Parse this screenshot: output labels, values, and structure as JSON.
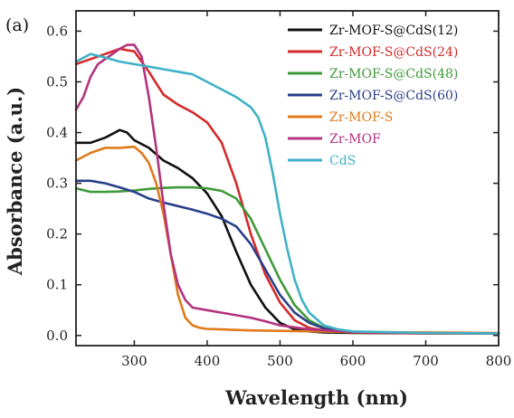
{
  "panel_label": "(a)",
  "chart_data": {
    "type": "line",
    "xlabel": "Wavelength (nm)",
    "ylabel": "Absorbance (a.u.)",
    "xlim": [
      220,
      800
    ],
    "ylim": [
      -0.02,
      0.64
    ],
    "xticks": [
      300,
      400,
      500,
      600,
      700,
      800
    ],
    "yticks": [
      0.0,
      0.1,
      0.2,
      0.3,
      0.4,
      0.5,
      0.6
    ],
    "ytick_labels": [
      "0.0",
      "0.1",
      "0.2",
      "0.3",
      "0.4",
      "0.5",
      "0.6"
    ],
    "grid": false,
    "legend_position": "top-right",
    "series": [
      {
        "name": "Zr-MOF-S@CdS(12)",
        "color": "#111111",
        "x": [
          220,
          240,
          260,
          280,
          290,
          300,
          320,
          340,
          360,
          380,
          400,
          420,
          440,
          460,
          480,
          500,
          520,
          540,
          560,
          600,
          700,
          800
        ],
        "y": [
          0.38,
          0.38,
          0.39,
          0.405,
          0.4,
          0.385,
          0.37,
          0.345,
          0.33,
          0.31,
          0.28,
          0.235,
          0.165,
          0.1,
          0.055,
          0.025,
          0.012,
          0.008,
          0.006,
          0.005,
          0.004,
          0.004
        ]
      },
      {
        "name": "Zr-MOF-S@CdS(24)",
        "color": "#d42a2a",
        "x": [
          220,
          240,
          260,
          280,
          300,
          320,
          340,
          360,
          380,
          400,
          420,
          440,
          460,
          480,
          500,
          520,
          540,
          560,
          600,
          700,
          800
        ],
        "y": [
          0.535,
          0.545,
          0.555,
          0.565,
          0.56,
          0.52,
          0.475,
          0.455,
          0.44,
          0.42,
          0.38,
          0.3,
          0.2,
          0.12,
          0.065,
          0.03,
          0.015,
          0.01,
          0.006,
          0.004,
          0.004
        ]
      },
      {
        "name": "Zr-MOF-S@CdS(48)",
        "color": "#3f9a3a",
        "x": [
          220,
          240,
          260,
          280,
          300,
          320,
          340,
          360,
          380,
          400,
          420,
          440,
          460,
          480,
          500,
          520,
          540,
          560,
          580,
          600,
          700,
          800
        ],
        "y": [
          0.29,
          0.283,
          0.283,
          0.284,
          0.286,
          0.289,
          0.291,
          0.292,
          0.292,
          0.29,
          0.285,
          0.27,
          0.23,
          0.17,
          0.11,
          0.06,
          0.03,
          0.015,
          0.01,
          0.007,
          0.005,
          0.004
        ]
      },
      {
        "name": "Zr-MOF-S@CdS(60)",
        "color": "#2a3f8a",
        "x": [
          220,
          240,
          260,
          280,
          300,
          320,
          340,
          360,
          380,
          400,
          420,
          440,
          460,
          480,
          500,
          520,
          540,
          560,
          580,
          600,
          700,
          800
        ],
        "y": [
          0.305,
          0.305,
          0.3,
          0.292,
          0.283,
          0.27,
          0.262,
          0.255,
          0.248,
          0.24,
          0.23,
          0.215,
          0.18,
          0.13,
          0.08,
          0.045,
          0.025,
          0.014,
          0.009,
          0.007,
          0.005,
          0.004
        ]
      },
      {
        "name": "Zr-MOF-S",
        "color": "#e07a1c",
        "x": [
          220,
          240,
          260,
          280,
          300,
          310,
          320,
          330,
          340,
          350,
          360,
          370,
          380,
          390,
          400,
          420,
          460,
          500,
          600,
          700,
          800
        ],
        "y": [
          0.345,
          0.36,
          0.37,
          0.37,
          0.372,
          0.36,
          0.34,
          0.3,
          0.24,
          0.16,
          0.08,
          0.035,
          0.02,
          0.015,
          0.013,
          0.012,
          0.01,
          0.009,
          0.007,
          0.006,
          0.005
        ]
      },
      {
        "name": "Zr-MOF",
        "color": "#b3337f",
        "x": [
          220,
          230,
          240,
          250,
          260,
          270,
          280,
          290,
          300,
          310,
          320,
          330,
          340,
          350,
          360,
          370,
          380,
          400,
          420,
          440,
          460,
          480,
          500,
          540,
          600,
          700,
          800
        ],
        "y": [
          0.445,
          0.47,
          0.51,
          0.535,
          0.545,
          0.555,
          0.565,
          0.573,
          0.573,
          0.55,
          0.47,
          0.37,
          0.26,
          0.16,
          0.1,
          0.07,
          0.055,
          0.05,
          0.045,
          0.04,
          0.035,
          0.028,
          0.02,
          0.012,
          0.007,
          0.005,
          0.004
        ]
      },
      {
        "name": "CdS",
        "color": "#3fb2c7",
        "x": [
          220,
          240,
          260,
          280,
          300,
          320,
          340,
          360,
          380,
          400,
          420,
          440,
          460,
          470,
          480,
          490,
          500,
          510,
          520,
          530,
          540,
          560,
          580,
          600,
          700,
          800
        ],
        "y": [
          0.54,
          0.555,
          0.548,
          0.54,
          0.535,
          0.53,
          0.525,
          0.52,
          0.515,
          0.5,
          0.485,
          0.47,
          0.45,
          0.43,
          0.39,
          0.32,
          0.24,
          0.17,
          0.11,
          0.07,
          0.045,
          0.02,
          0.012,
          0.008,
          0.005,
          0.004
        ]
      }
    ]
  }
}
